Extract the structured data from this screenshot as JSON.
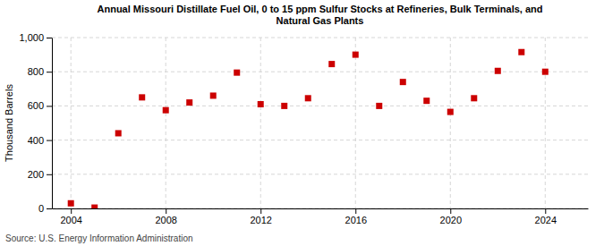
{
  "chart_data": {
    "type": "scatter",
    "title": "Annual Missouri Distillate Fuel Oil, 0 to 15 ppm Sulfur Stocks at Refineries, Bulk Terminals, and\nNatural Gas Plants",
    "y_label": "Thousand Barrels",
    "source": "Source: U.S. Energy Information Administration",
    "x": [
      2004,
      2005,
      2006,
      2007,
      2008,
      2009,
      2010,
      2011,
      2012,
      2013,
      2014,
      2015,
      2016,
      2017,
      2018,
      2019,
      2020,
      2021,
      2022,
      2023,
      2024
    ],
    "values": [
      30,
      5,
      440,
      650,
      575,
      620,
      660,
      795,
      610,
      600,
      645,
      845,
      900,
      600,
      740,
      630,
      565,
      645,
      805,
      915,
      800
    ],
    "color": "#cc0000",
    "marker": "square",
    "xlim": [
      2003.2,
      2025.8
    ],
    "xticks": [
      2004,
      2008,
      2012,
      2016,
      2020,
      2024
    ],
    "ylim": [
      0,
      1000
    ],
    "yticks": [
      0,
      200,
      400,
      600,
      800,
      {
        "value": 1000,
        "label": "1,000"
      }
    ],
    "grid": true
  }
}
